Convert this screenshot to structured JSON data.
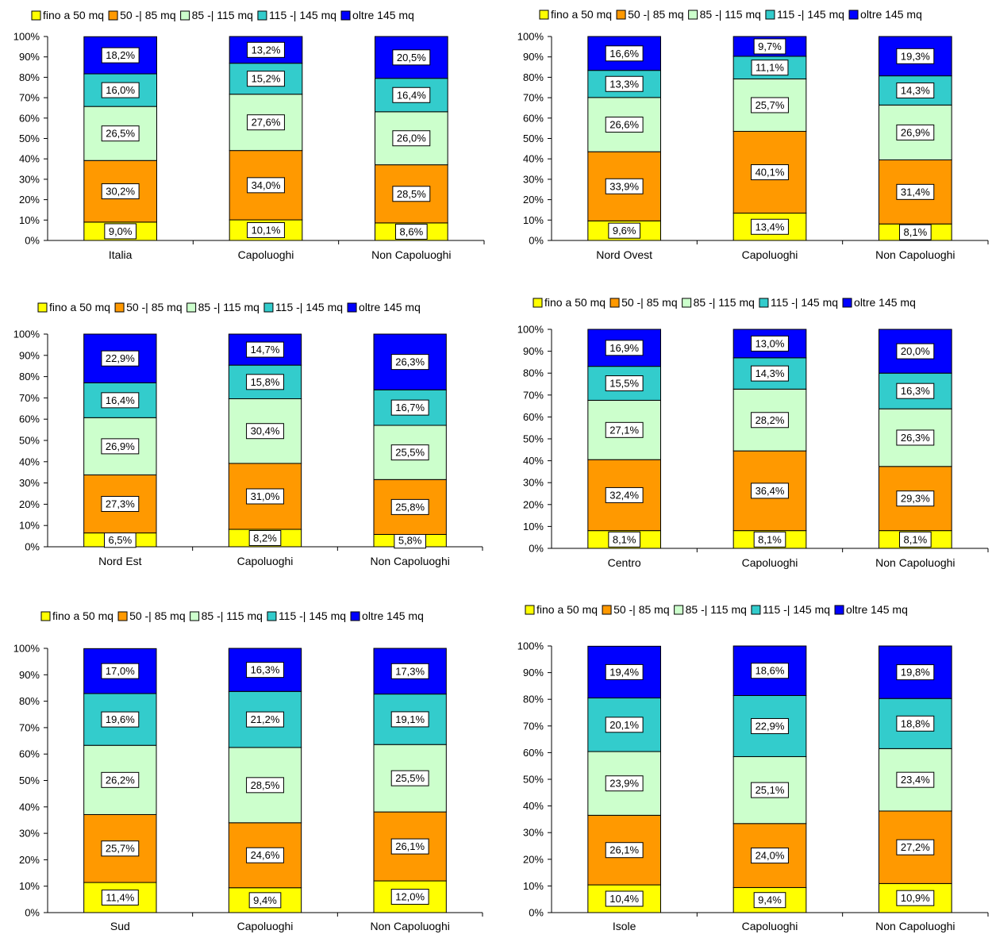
{
  "colors": {
    "fino a 50 mq": "#ffff00",
    "50 -| 85 mq": "#ff9900",
    "85 -| 115 mq": "#ccffcc",
    "115 -| 145 mq": "#33cccc",
    "oltre 145 mq": "#0000ff"
  },
  "chart_data": [
    {
      "type": "bar",
      "stacked": true,
      "percent": true,
      "legend_position": "top",
      "categories": [
        "Italia",
        "Capoluoghi",
        "Non Capoluoghi"
      ],
      "ylim": [
        0,
        100
      ],
      "yticks": [
        "0%",
        "10%",
        "20%",
        "30%",
        "40%",
        "50%",
        "60%",
        "70%",
        "80%",
        "90%",
        "100%"
      ],
      "series": [
        {
          "name": "fino a 50 mq",
          "values": [
            9.0,
            10.1,
            8.6
          ],
          "labels": [
            "9,0%",
            "10,1%",
            "8,6%"
          ]
        },
        {
          "name": "50 -| 85 mq",
          "values": [
            30.2,
            34.0,
            28.5
          ],
          "labels": [
            "30,2%",
            "34,0%",
            "28,5%"
          ]
        },
        {
          "name": "85 -| 115 mq",
          "values": [
            26.5,
            27.6,
            26.0
          ],
          "labels": [
            "26,5%",
            "27,6%",
            "26,0%"
          ]
        },
        {
          "name": "115 -| 145 mq",
          "values": [
            16.0,
            15.2,
            16.4
          ],
          "labels": [
            "16,0%",
            "15,2%",
            "16,4%"
          ]
        },
        {
          "name": "oltre 145 mq",
          "values": [
            18.2,
            13.2,
            20.5
          ],
          "labels": [
            "18,2%",
            "13,2%",
            "20,5%"
          ]
        }
      ]
    },
    {
      "type": "bar",
      "stacked": true,
      "percent": true,
      "legend_position": "top",
      "categories": [
        "Nord Ovest",
        "Capoluoghi",
        "Non Capoluoghi"
      ],
      "ylim": [
        0,
        100
      ],
      "yticks": [
        "0%",
        "10%",
        "20%",
        "30%",
        "40%",
        "50%",
        "60%",
        "70%",
        "80%",
        "90%",
        "100%"
      ],
      "series": [
        {
          "name": "fino a 50 mq",
          "values": [
            9.6,
            13.4,
            8.1
          ],
          "labels": [
            "9,6%",
            "13,4%",
            "8,1%"
          ]
        },
        {
          "name": "50 -| 85 mq",
          "values": [
            33.9,
            40.1,
            31.4
          ],
          "labels": [
            "33,9%",
            "40,1%",
            "31,4%"
          ]
        },
        {
          "name": "85 -| 115 mq",
          "values": [
            26.6,
            25.7,
            26.9
          ],
          "labels": [
            "26,6%",
            "25,7%",
            "26,9%"
          ]
        },
        {
          "name": "115 -| 145 mq",
          "values": [
            13.3,
            11.1,
            14.3
          ],
          "labels": [
            "13,3%",
            "11,1%",
            "14,3%"
          ]
        },
        {
          "name": "oltre 145 mq",
          "values": [
            16.6,
            9.7,
            19.3
          ],
          "labels": [
            "16,6%",
            "9,7%",
            "19,3%"
          ]
        }
      ]
    },
    {
      "type": "bar",
      "stacked": true,
      "percent": true,
      "legend_position": "top",
      "categories": [
        "Nord Est",
        "Capoluoghi",
        "Non Capoluoghi"
      ],
      "ylim": [
        0,
        100
      ],
      "yticks": [
        "0%",
        "10%",
        "20%",
        "30%",
        "40%",
        "50%",
        "60%",
        "70%",
        "80%",
        "90%",
        "100%"
      ],
      "series": [
        {
          "name": "fino a 50 mq",
          "values": [
            6.5,
            8.2,
            5.8
          ],
          "labels": [
            "6,5%",
            "8,2%",
            "5,8%"
          ]
        },
        {
          "name": "50 -| 85 mq",
          "values": [
            27.3,
            31.0,
            25.8
          ],
          "labels": [
            "27,3%",
            "31,0%",
            "25,8%"
          ]
        },
        {
          "name": "85 -| 115 mq",
          "values": [
            26.9,
            30.4,
            25.5
          ],
          "labels": [
            "26,9%",
            "30,4%",
            "25,5%"
          ]
        },
        {
          "name": "115 -| 145 mq",
          "values": [
            16.4,
            15.8,
            16.7
          ],
          "labels": [
            "16,4%",
            "15,8%",
            "16,7%"
          ]
        },
        {
          "name": "oltre 145 mq",
          "values": [
            22.9,
            14.7,
            26.3
          ],
          "labels": [
            "22,9%",
            "14,7%",
            "26,3%"
          ]
        }
      ]
    },
    {
      "type": "bar",
      "stacked": true,
      "percent": true,
      "legend_position": "top",
      "categories": [
        "Centro",
        "Capoluoghi",
        "Non Capoluoghi"
      ],
      "ylim": [
        0,
        100
      ],
      "yticks": [
        "0%",
        "10%",
        "20%",
        "30%",
        "40%",
        "50%",
        "60%",
        "70%",
        "80%",
        "90%",
        "100%"
      ],
      "series": [
        {
          "name": "fino a 50 mq",
          "values": [
            8.1,
            8.1,
            8.1
          ],
          "labels": [
            "8,1%",
            "8,1%",
            "8,1%"
          ]
        },
        {
          "name": "50 -| 85 mq",
          "values": [
            32.4,
            36.4,
            29.3
          ],
          "labels": [
            "32,4%",
            "36,4%",
            "29,3%"
          ]
        },
        {
          "name": "85 -| 115 mq",
          "values": [
            27.1,
            28.2,
            26.3
          ],
          "labels": [
            "27,1%",
            "28,2%",
            "26,3%"
          ]
        },
        {
          "name": "115 -| 145 mq",
          "values": [
            15.5,
            14.3,
            16.3
          ],
          "labels": [
            "15,5%",
            "14,3%",
            "16,3%"
          ]
        },
        {
          "name": "oltre 145 mq",
          "values": [
            16.9,
            13.0,
            20.0
          ],
          "labels": [
            "16,9%",
            "13,0%",
            "20,0%"
          ]
        }
      ]
    },
    {
      "type": "bar",
      "stacked": true,
      "percent": true,
      "legend_position": "top",
      "categories": [
        "Sud",
        "Capoluoghi",
        "Non Capoluoghi"
      ],
      "ylim": [
        0,
        100
      ],
      "yticks": [
        "0%",
        "10%",
        "20%",
        "30%",
        "40%",
        "50%",
        "60%",
        "70%",
        "80%",
        "90%",
        "100%"
      ],
      "series": [
        {
          "name": "fino a 50 mq",
          "values": [
            11.4,
            9.4,
            12.0
          ],
          "labels": [
            "11,4%",
            "9,4%",
            "12,0%"
          ]
        },
        {
          "name": "50 -| 85 mq",
          "values": [
            25.7,
            24.6,
            26.1
          ],
          "labels": [
            "25,7%",
            "24,6%",
            "26,1%"
          ]
        },
        {
          "name": "85 -| 115 mq",
          "values": [
            26.2,
            28.5,
            25.5
          ],
          "labels": [
            "26,2%",
            "28,5%",
            "25,5%"
          ]
        },
        {
          "name": "115 -| 145 mq",
          "values": [
            19.6,
            21.2,
            19.1
          ],
          "labels": [
            "19,6%",
            "21,2%",
            "19,1%"
          ]
        },
        {
          "name": "oltre 145 mq",
          "values": [
            17.0,
            16.3,
            17.3
          ],
          "labels": [
            "17,0%",
            "16,3%",
            "17,3%"
          ]
        }
      ]
    },
    {
      "type": "bar",
      "stacked": true,
      "percent": true,
      "legend_position": "top",
      "categories": [
        "Isole",
        "Capoluoghi",
        "Non Capoluoghi"
      ],
      "ylim": [
        0,
        100
      ],
      "yticks": [
        "0%",
        "10%",
        "20%",
        "30%",
        "40%",
        "50%",
        "60%",
        "70%",
        "80%",
        "90%",
        "100%"
      ],
      "series": [
        {
          "name": "fino a 50 mq",
          "values": [
            10.4,
            9.4,
            10.9
          ],
          "labels": [
            "10,4%",
            "9,4%",
            "10,9%"
          ]
        },
        {
          "name": "50 -| 85 mq",
          "values": [
            26.1,
            24.0,
            27.2
          ],
          "labels": [
            "26,1%",
            "24,0%",
            "27,2%"
          ]
        },
        {
          "name": "85 -| 115 mq",
          "values": [
            23.9,
            25.1,
            23.4
          ],
          "labels": [
            "23,9%",
            "25,1%",
            "23,4%"
          ]
        },
        {
          "name": "115 -| 145 mq",
          "values": [
            20.1,
            22.9,
            18.8
          ],
          "labels": [
            "20,1%",
            "22,9%",
            "18,8%"
          ]
        },
        {
          "name": "oltre 145 mq",
          "values": [
            19.4,
            18.6,
            19.8
          ],
          "labels": [
            "19,4%",
            "18,6%",
            "19,8%"
          ]
        }
      ]
    }
  ]
}
